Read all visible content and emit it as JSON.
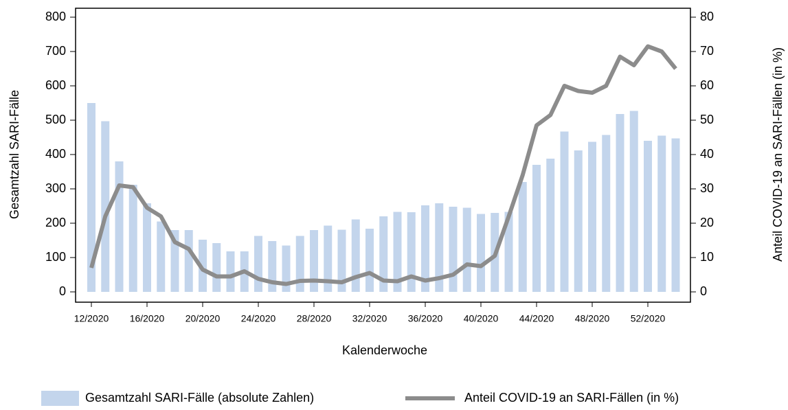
{
  "chart_data": {
    "type": "bar-line",
    "x_label": "Kalenderwoche",
    "y_label": "Gesamtzahl SARI-Fälle",
    "y2_label": "Anteil COVID-19 an SARI-Fällen (in %)",
    "categories": [
      "12/2020",
      null,
      null,
      null,
      "16/2020",
      null,
      null,
      null,
      "20/2020",
      null,
      null,
      null,
      "24/2020",
      null,
      null,
      null,
      "28/2020",
      null,
      null,
      null,
      "32/2020",
      null,
      null,
      null,
      "36/2020",
      null,
      null,
      null,
      "40/2020",
      null,
      null,
      null,
      "44/2020",
      null,
      null,
      null,
      "48/2020",
      null,
      null,
      null,
      "52/2020",
      null,
      null
    ],
    "series": [
      {
        "name": "Gesamtzahl SARI-Fälle (absolute Zahlen)",
        "type": "bar",
        "color": "#c3d5ec",
        "values": [
          550,
          497,
          380,
          312,
          258,
          205,
          180,
          180,
          152,
          142,
          118,
          118,
          163,
          148,
          135,
          163,
          180,
          193,
          181,
          211,
          184,
          220,
          233,
          232,
          252,
          258,
          248,
          245,
          227,
          230,
          233,
          320,
          370,
          388,
          467,
          412,
          437,
          457,
          518,
          527,
          440,
          455,
          447
        ]
      },
      {
        "name": "Anteil COVID-19 an SARI-Fällen (in %)",
        "type": "line",
        "axis": "y2",
        "color": "#8c8c8c",
        "values": [
          7,
          22,
          31,
          30.5,
          24.5,
          22,
          14.5,
          12.5,
          6.5,
          4.5,
          4.5,
          6,
          3.8,
          2.8,
          2.3,
          3.2,
          3.3,
          3.1,
          2.8,
          4.3,
          5.5,
          3.3,
          3.1,
          4.5,
          3.3,
          4,
          5,
          8,
          7.5,
          10.5,
          22,
          34,
          48.5,
          51.5,
          60,
          58.5,
          58,
          60,
          68.5,
          66,
          71.5,
          70,
          65
        ]
      }
    ],
    "ylim": [
      0,
      800
    ],
    "yticks": [
      0,
      100,
      200,
      300,
      400,
      500,
      600,
      700,
      800
    ],
    "y2lim": [
      0,
      80
    ],
    "y2ticks": [
      0,
      10,
      20,
      30,
      40,
      50,
      60,
      70,
      80
    ],
    "legend": "bottom"
  }
}
